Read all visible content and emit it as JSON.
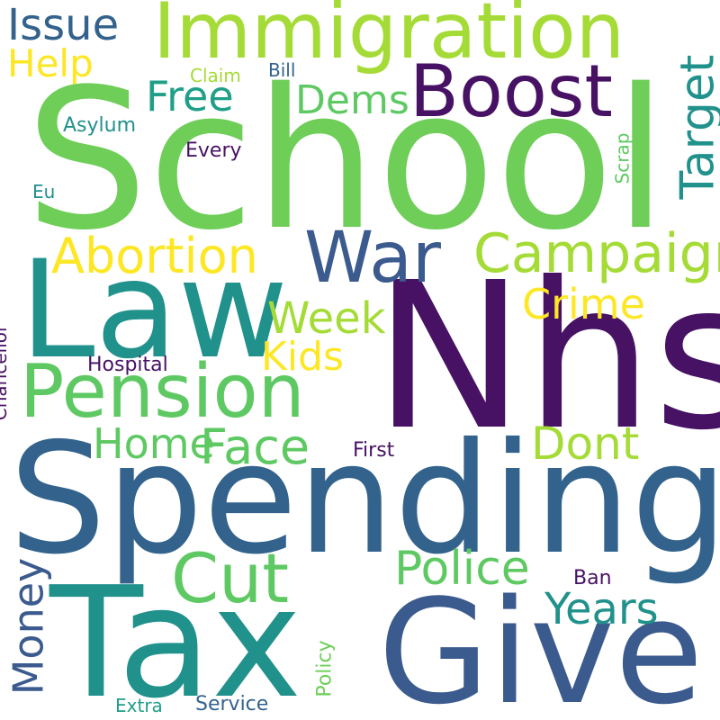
{
  "palette": {
    "dark_purple": "#471164",
    "blue": "#3b5a8d",
    "steel_blue": "#33638d",
    "teal": "#21918c",
    "sea_green": "#1f9f88",
    "green": "#5ec962",
    "light_green": "#6ece58",
    "lime": "#a5db36",
    "yellow": "#fde725"
  },
  "words": [
    "School",
    "Nhs",
    "Spending",
    "Law",
    "Tax",
    "Give",
    "Immigration",
    "Pension",
    "Boost",
    "War",
    "Campaign",
    "Abortion",
    "Cut",
    "Police",
    "Target",
    "Face",
    "Dont",
    "Week",
    "Crime",
    "Home",
    "Years",
    "Issue",
    "Kids",
    "Free",
    "Dems",
    "Money",
    "Help",
    "Asylum",
    "Every",
    "Hospital",
    "Chancellor",
    "First",
    "Scrap",
    "Claim",
    "Bill",
    "Eu",
    "Ban",
    "Policy",
    "Extra",
    "Service"
  ]
}
